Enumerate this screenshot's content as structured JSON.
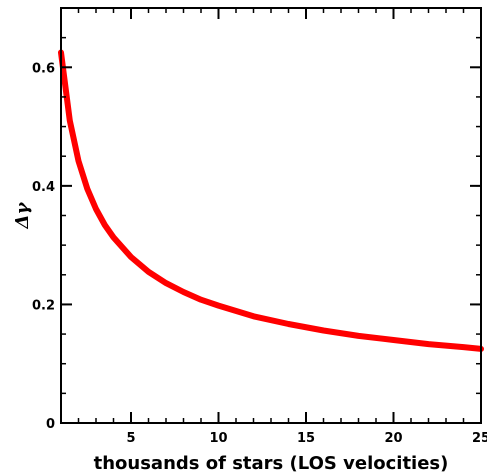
{
  "chart_data": {
    "type": "line",
    "title": "",
    "xlabel": "thousands of stars (LOS velocities)",
    "ylabel": "Δγ",
    "xlim": [
      1,
      25
    ],
    "ylim": [
      0,
      0.7
    ],
    "grid": false,
    "xticks": [
      5,
      10,
      15,
      20,
      25
    ],
    "xtick_labels": [
      "5",
      "10",
      "15",
      "20",
      "25"
    ],
    "yticks": [
      0,
      0.2,
      0.4,
      0.6
    ],
    "ytick_labels": [
      "0",
      "0.2",
      "0.4",
      "0.6"
    ],
    "series": [
      {
        "color": "#ff0000",
        "x": [
          1,
          1.5,
          2,
          2.5,
          3,
          3.5,
          4,
          5,
          6,
          7,
          8,
          9,
          10,
          12,
          14,
          16,
          18,
          20,
          22,
          24,
          25
        ],
        "y": [
          0.625,
          0.51,
          0.442,
          0.395,
          0.361,
          0.334,
          0.313,
          0.28,
          0.255,
          0.236,
          0.221,
          0.208,
          0.198,
          0.18,
          0.167,
          0.156,
          0.147,
          0.14,
          0.133,
          0.128,
          0.125
        ]
      }
    ]
  }
}
